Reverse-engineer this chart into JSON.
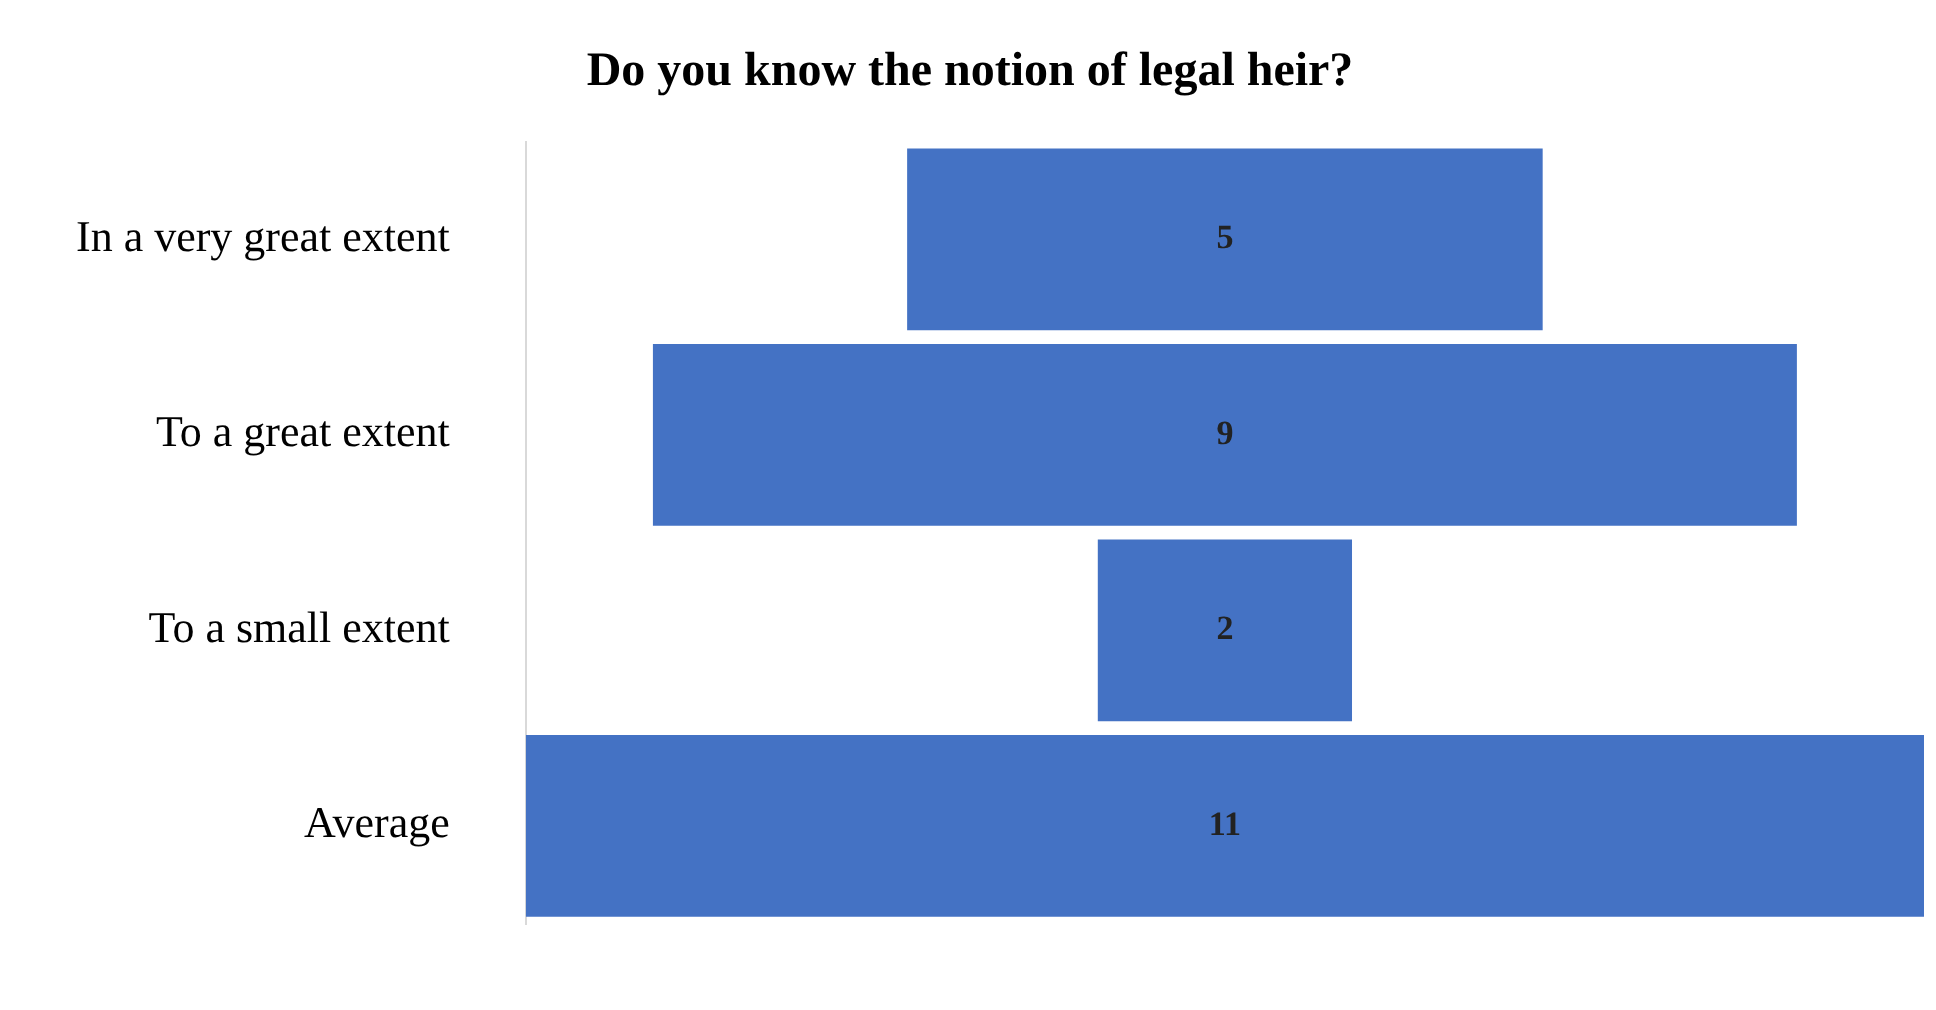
{
  "chart_data": {
    "type": "other",
    "title": "Do you know the notion of legal heir?",
    "categories": [
      "In a very great extent",
      "To a great extent",
      "To a small extent",
      "Average"
    ],
    "values": [
      5,
      9,
      2,
      11
    ],
    "color": "#4472c4",
    "data_labels": true
  }
}
